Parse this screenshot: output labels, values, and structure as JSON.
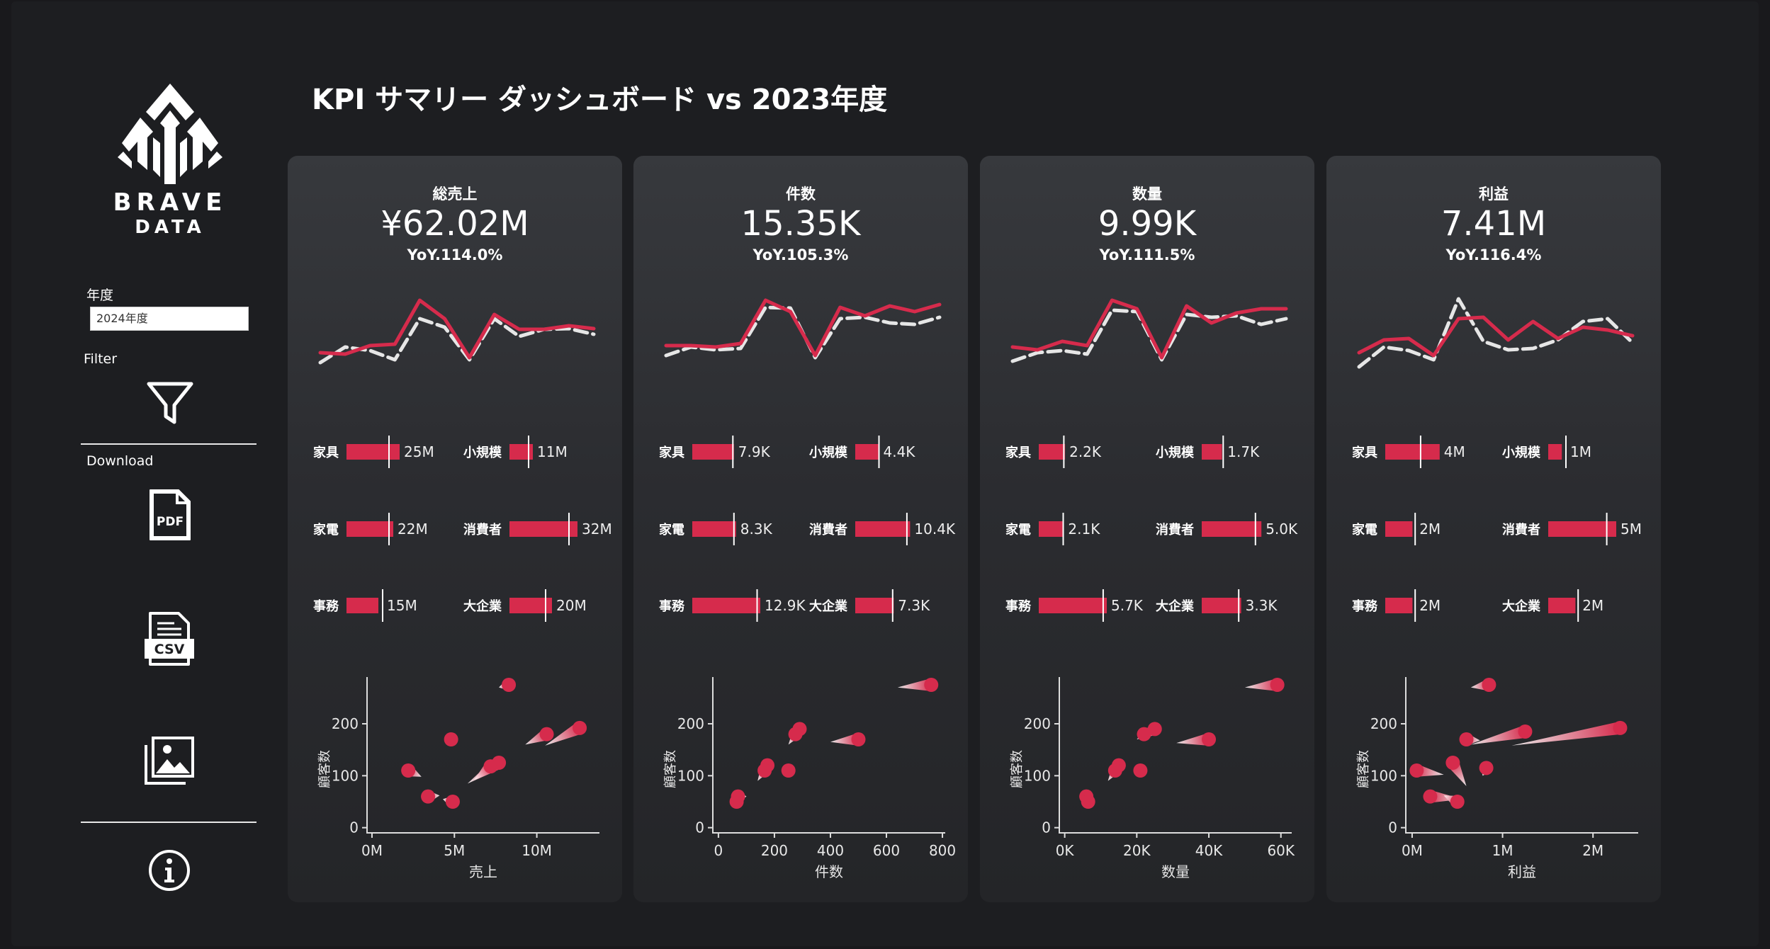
{
  "title": "KPI サマリー ダッシュボード vs 2023年度",
  "sidebar": {
    "logo_line1": "BRAVE",
    "logo_line2": "DATA",
    "year_label": "年度",
    "year_value": "2024年度",
    "filter_label": "Filter",
    "download_label": "Download",
    "pdf_label": "PDF",
    "csv_label": "CSV",
    "icons": [
      "funnel-icon",
      "pdf-file-icon",
      "csv-file-icon",
      "image-gallery-icon",
      "info-icon"
    ]
  },
  "colors": {
    "current": "#d62b4c",
    "previous": "#e6e6e6",
    "card_text": "#ffffff"
  },
  "chart_data": [
    {
      "type": "line",
      "kpi_label": "総売上",
      "kpi_value": "¥62.02M",
      "yoy": "YoY.114.0%",
      "trend": {
        "series": [
          {
            "values": [
              0.22,
              0.2,
              0.32,
              0.34,
              0.96,
              0.7,
              0.15,
              0.76,
              0.55,
              0.55,
              0.6,
              0.56
            ]
          },
          {
            "values": [
              0.08,
              0.3,
              0.25,
              0.12,
              0.7,
              0.58,
              0.12,
              0.7,
              0.45,
              0.55,
              0.56,
              0.48
            ]
          }
        ]
      },
      "bars": [
        {
          "label": "家具",
          "value": 25,
          "ref": 20,
          "text": "25M"
        },
        {
          "label": "小規模",
          "value": 11,
          "ref": 9,
          "text": "11M"
        },
        {
          "label": "家電",
          "value": 22,
          "ref": 20,
          "text": "22M"
        },
        {
          "label": "消費者",
          "value": 32,
          "ref": 28,
          "text": "32M"
        },
        {
          "label": "事務",
          "value": 15,
          "ref": 17,
          "text": "15M"
        },
        {
          "label": "大企業",
          "value": 20,
          "ref": 17,
          "text": "20M"
        }
      ],
      "scatter": {
        "xlabel": "売上",
        "ylabel": "顧客数",
        "xticks": [
          "0M",
          "5M",
          "10M"
        ],
        "xtick_values": [
          0,
          5,
          10
        ],
        "xlim": [
          -0.3,
          13.8
        ],
        "yticks": [
          "0",
          "100",
          "200"
        ],
        "ytick_values": [
          0,
          100,
          200
        ],
        "ylim": [
          -10,
          290
        ],
        "points": [
          {
            "x": 2.2,
            "y": 110,
            "px": 3.0,
            "py": 98
          },
          {
            "x": 4.8,
            "y": 170,
            "px": 5.0,
            "py": 165
          },
          {
            "x": 3.4,
            "y": 60,
            "px": 4.1,
            "py": 62
          },
          {
            "x": 4.9,
            "y": 50,
            "px": 4.3,
            "py": 55
          },
          {
            "x": 8.3,
            "y": 275,
            "px": 7.7,
            "py": 270
          },
          {
            "x": 7.7,
            "y": 125,
            "px": 5.8,
            "py": 85
          },
          {
            "x": 7.2,
            "y": 118,
            "px": 6.2,
            "py": 92
          },
          {
            "x": 10.6,
            "y": 180,
            "px": 9.3,
            "py": 160
          },
          {
            "x": 12.6,
            "y": 192,
            "px": 10.5,
            "py": 158
          }
        ]
      }
    },
    {
      "type": "line",
      "kpi_label": "件数",
      "kpi_value": "15.35K",
      "yoy": "YoY.105.3%",
      "trend": {
        "series": [
          {
            "values": [
              0.32,
              0.32,
              0.3,
              0.35,
              0.96,
              0.8,
              0.18,
              0.86,
              0.74,
              0.88,
              0.8,
              0.9
            ]
          },
          {
            "values": [
              0.18,
              0.3,
              0.26,
              0.28,
              0.86,
              0.85,
              0.15,
              0.7,
              0.72,
              0.64,
              0.62,
              0.72
            ]
          }
        ]
      },
      "bars": [
        {
          "label": "家具",
          "value": 7.9,
          "ref": 7.7,
          "text": "7.9K"
        },
        {
          "label": "小規模",
          "value": 4.4,
          "ref": 4.5,
          "text": "4.4K"
        },
        {
          "label": "家電",
          "value": 8.3,
          "ref": 7.9,
          "text": "8.3K"
        },
        {
          "label": "消費者",
          "value": 10.4,
          "ref": 9.8,
          "text": "10.4K"
        },
        {
          "label": "事務",
          "value": 12.9,
          "ref": 12.3,
          "text": "12.9K"
        },
        {
          "label": "大企業",
          "value": 7.3,
          "ref": 7.1,
          "text": "7.3K"
        }
      ],
      "scatter": {
        "xlabel": "件数",
        "ylabel": "顧客数",
        "xticks": [
          "0",
          "200",
          "400",
          "600",
          "800"
        ],
        "xtick_values": [
          0,
          200,
          400,
          600,
          800
        ],
        "xlim": [
          -20,
          810
        ],
        "yticks": [
          "0",
          "100",
          "200"
        ],
        "ytick_values": [
          0,
          100,
          200
        ],
        "ylim": [
          -10,
          290
        ],
        "points": [
          {
            "x": 70,
            "y": 60,
            "px": 100,
            "py": 60
          },
          {
            "x": 65,
            "y": 50,
            "px": 80,
            "py": 55
          },
          {
            "x": 175,
            "y": 120,
            "px": 140,
            "py": 90
          },
          {
            "x": 165,
            "y": 110,
            "px": 150,
            "py": 100
          },
          {
            "x": 290,
            "y": 190,
            "px": 250,
            "py": 160
          },
          {
            "x": 275,
            "y": 180,
            "px": 260,
            "py": 172
          },
          {
            "x": 250,
            "y": 110,
            "px": 240,
            "py": 112
          },
          {
            "x": 500,
            "y": 170,
            "px": 400,
            "py": 165
          },
          {
            "x": 760,
            "y": 275,
            "px": 640,
            "py": 270
          }
        ]
      }
    },
    {
      "type": "line",
      "kpi_label": "数量",
      "kpi_value": "9.99K",
      "yoy": "YoY.111.5%",
      "trend": {
        "series": [
          {
            "values": [
              0.3,
              0.26,
              0.38,
              0.32,
              0.96,
              0.84,
              0.15,
              0.88,
              0.64,
              0.78,
              0.84,
              0.84
            ]
          },
          {
            "values": [
              0.1,
              0.22,
              0.25,
              0.2,
              0.82,
              0.8,
              0.12,
              0.76,
              0.72,
              0.74,
              0.62,
              0.7
            ]
          }
        ]
      },
      "bars": [
        {
          "label": "家具",
          "value": 2.2,
          "ref": 2.1,
          "text": "2.2K"
        },
        {
          "label": "小規模",
          "value": 1.7,
          "ref": 1.8,
          "text": "1.7K"
        },
        {
          "label": "家電",
          "value": 2.1,
          "ref": 2.05,
          "text": "2.1K"
        },
        {
          "label": "消費者",
          "value": 5.0,
          "ref": 4.5,
          "text": "5.0K"
        },
        {
          "label": "事務",
          "value": 5.7,
          "ref": 5.4,
          "text": "5.7K"
        },
        {
          "label": "大企業",
          "value": 3.3,
          "ref": 3.1,
          "text": "3.3K"
        }
      ],
      "scatter": {
        "xlabel": "数量",
        "ylabel": "顧客数",
        "xticks": [
          "0K",
          "20K",
          "40K",
          "60K"
        ],
        "xtick_values": [
          0,
          20000,
          40000,
          60000
        ],
        "xlim": [
          -1500,
          63000
        ],
        "yticks": [
          "0",
          "100",
          "200"
        ],
        "ytick_values": [
          0,
          100,
          200
        ],
        "ylim": [
          -10,
          290
        ],
        "points": [
          {
            "x": 6000,
            "y": 60,
            "px": 8000,
            "py": 55
          },
          {
            "x": 6500,
            "y": 50,
            "px": 5500,
            "py": 58
          },
          {
            "x": 15000,
            "y": 120,
            "px": 12000,
            "py": 90
          },
          {
            "x": 14000,
            "y": 110,
            "px": 13000,
            "py": 100
          },
          {
            "x": 25000,
            "y": 190,
            "px": 20000,
            "py": 170
          },
          {
            "x": 22000,
            "y": 180,
            "px": 21000,
            "py": 175
          },
          {
            "x": 21000,
            "y": 110,
            "px": 20000,
            "py": 113
          },
          {
            "x": 40000,
            "y": 170,
            "px": 31000,
            "py": 163
          },
          {
            "x": 59000,
            "y": 275,
            "px": 50000,
            "py": 270
          }
        ]
      }
    },
    {
      "type": "line",
      "kpi_label": "利益",
      "kpi_value": "7.41M",
      "yoy": "YoY.116.4%",
      "trend": {
        "series": [
          {
            "values": [
              0.22,
              0.4,
              0.42,
              0.18,
              0.7,
              0.72,
              0.4,
              0.66,
              0.42,
              0.58,
              0.54,
              0.46
            ]
          },
          {
            "values": [
              0.02,
              0.3,
              0.25,
              0.12,
              0.98,
              0.38,
              0.26,
              0.28,
              0.4,
              0.66,
              0.7,
              0.36
            ]
          }
        ]
      },
      "bars": [
        {
          "label": "家具",
          "value": 4,
          "ref": 2.6,
          "text": "4M"
        },
        {
          "label": "小規模",
          "value": 1,
          "ref": 1.3,
          "text": "1M"
        },
        {
          "label": "家電",
          "value": 2,
          "ref": 2.2,
          "text": "2M"
        },
        {
          "label": "消費者",
          "value": 5,
          "ref": 4.3,
          "text": "5M"
        },
        {
          "label": "事務",
          "value": 2,
          "ref": 2.2,
          "text": "2M"
        },
        {
          "label": "大企業",
          "value": 2,
          "ref": 2.2,
          "text": "2M"
        }
      ],
      "scatter": {
        "xlabel": "利益",
        "ylabel": "顧客数",
        "xticks": [
          "0M",
          "1M",
          "2M"
        ],
        "xtick_values": [
          0,
          1,
          2
        ],
        "xlim": [
          -0.07,
          2.5
        ],
        "yticks": [
          "0",
          "100",
          "200"
        ],
        "ytick_values": [
          0,
          100,
          200
        ],
        "ylim": [
          -10,
          290
        ],
        "points": [
          {
            "x": 0.05,
            "y": 110,
            "px": 0.35,
            "py": 102
          },
          {
            "x": 0.6,
            "y": 170,
            "px": 0.75,
            "py": 168
          },
          {
            "x": 0.85,
            "y": 275,
            "px": 0.65,
            "py": 270
          },
          {
            "x": 0.45,
            "y": 125,
            "px": 0.6,
            "py": 80
          },
          {
            "x": 0.2,
            "y": 60,
            "px": 0.55,
            "py": 55
          },
          {
            "x": 0.5,
            "y": 50,
            "px": 0.35,
            "py": 62
          },
          {
            "x": 0.82,
            "y": 115,
            "px": 0.78,
            "py": 100
          },
          {
            "x": 1.25,
            "y": 185,
            "px": 0.65,
            "py": 160
          },
          {
            "x": 2.3,
            "y": 192,
            "px": 1.1,
            "py": 158
          }
        ]
      }
    }
  ]
}
